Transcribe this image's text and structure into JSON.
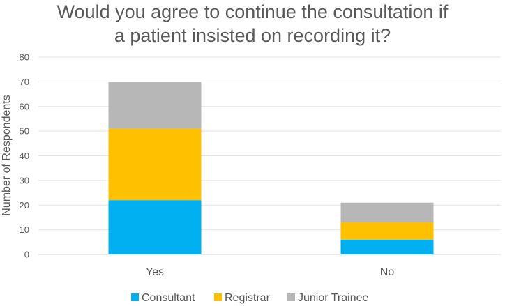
{
  "chart_data": {
    "type": "bar",
    "stacked": true,
    "title_lines": [
      "Would you agree to continue the consultation if",
      "a patient insisted on recording it?"
    ],
    "xlabel": "",
    "ylabel": "Number of Respondents",
    "ylim": [
      0,
      80
    ],
    "yticks": [
      0,
      10,
      20,
      30,
      40,
      50,
      60,
      70,
      80
    ],
    "grid": true,
    "legend_position": "bottom",
    "categories": [
      "Yes",
      "No"
    ],
    "series": [
      {
        "name": "Consultant",
        "color": "#00B0F0",
        "values": [
          22,
          6
        ]
      },
      {
        "name": "Registrar",
        "color": "#FFC000",
        "values": [
          29,
          7
        ]
      },
      {
        "name": "Junior Trainee",
        "color": "#B7B7B7",
        "values": [
          19,
          8
        ]
      }
    ]
  }
}
